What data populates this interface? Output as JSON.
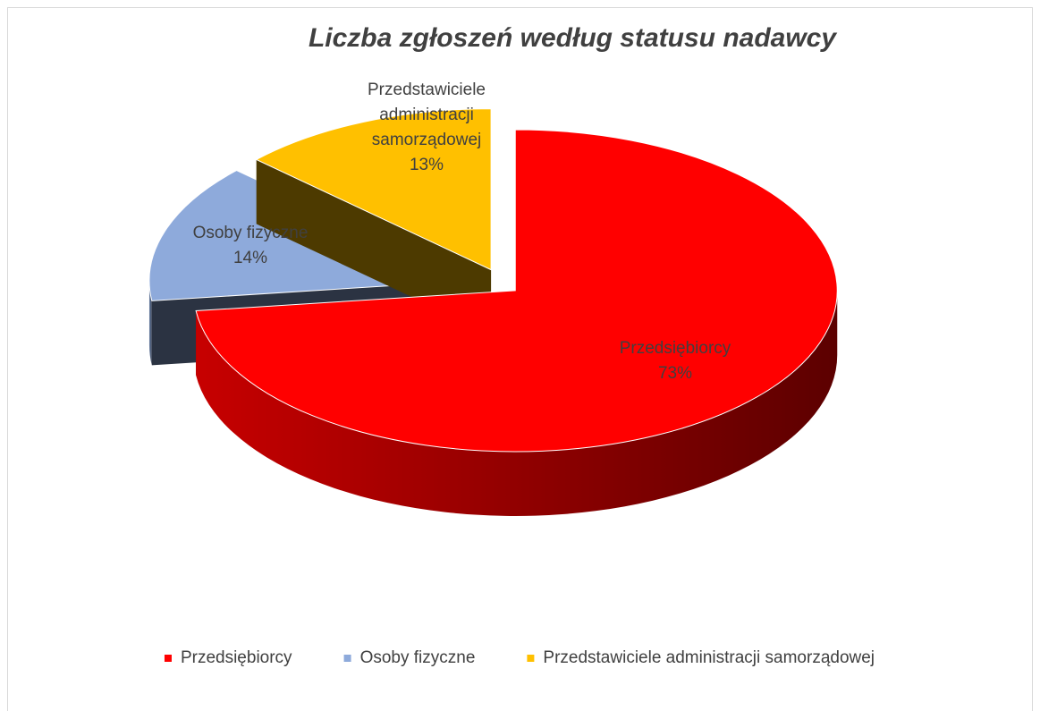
{
  "chart_data": {
    "type": "pie",
    "title": "Liczba zgłoszeń według statusu nadawcy",
    "categories": [
      "Przedsiębiorcy",
      "Osoby fizyczne",
      "Przedstawiciele administracji samorządowej"
    ],
    "values": [
      73,
      14,
      13
    ],
    "value_labels": [
      "73%",
      "14%",
      "13%"
    ],
    "colors": [
      "#ff0000",
      "#8eaadb",
      "#ffc000"
    ],
    "legend": "bottom"
  }
}
